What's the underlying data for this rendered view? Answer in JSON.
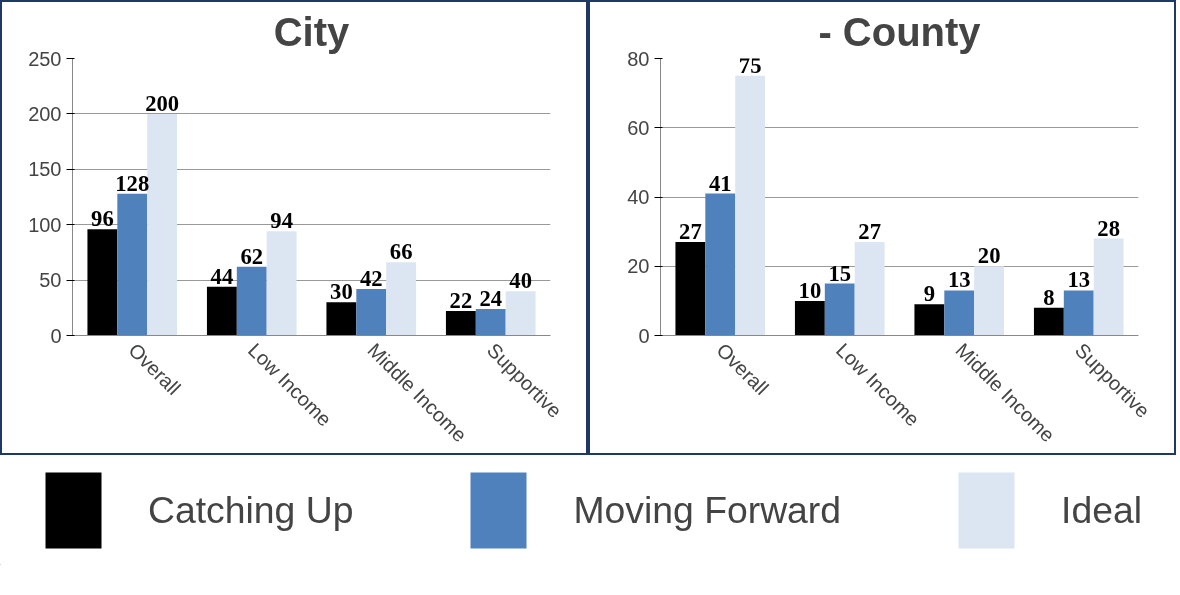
{
  "chart_data": [
    {
      "type": "bar",
      "title": "City",
      "categories": [
        "Overall",
        "Low Income",
        "Middle Income",
        "Supportive"
      ],
      "ylim": [
        0,
        250
      ],
      "yticks": [
        0,
        50,
        100,
        150,
        200,
        250
      ],
      "grid": "y",
      "data_labels": true,
      "legend": "bottom",
      "series": [
        {
          "name": "Catching Up",
          "color": "#000000",
          "values": [
            96,
            44,
            30,
            22
          ]
        },
        {
          "name": "Moving Forward",
          "color": "#4f81bd",
          "values": [
            128,
            62,
            42,
            24
          ]
        },
        {
          "name": "Ideal",
          "color": "#dce6f2",
          "values": [
            200,
            94,
            66,
            40
          ]
        }
      ]
    },
    {
      "type": "bar",
      "title": "- County",
      "categories": [
        "Overall",
        "Low Income",
        "Middle Income",
        "Supportive"
      ],
      "ylim": [
        0,
        80
      ],
      "yticks": [
        0,
        20,
        40,
        60,
        80
      ],
      "grid": "y",
      "data_labels": true,
      "series": [
        {
          "color": "#000000",
          "values": [
            27,
            10,
            9,
            8
          ]
        },
        {
          "color": "#4f81bd",
          "values": [
            41,
            15,
            13,
            13
          ]
        },
        {
          "color": "#dce6f2",
          "values": [
            75,
            27,
            20,
            28
          ]
        }
      ]
    }
  ]
}
